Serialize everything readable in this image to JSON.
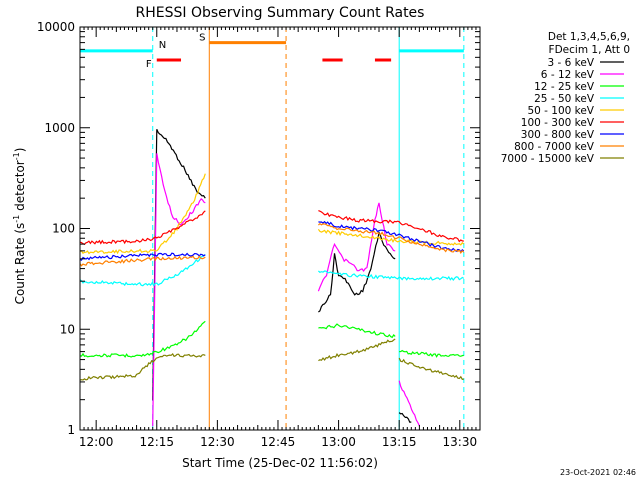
{
  "chart_data": {
    "type": "line",
    "title": "RHESSI Observing Summary Count Rates",
    "xlabel": "Start Time (25-Dec-02 11:56:02)",
    "ylabel_main": "Count Rate (s",
    "ylabel_sup1": "-1",
    "ylabel_mid": " detector",
    "ylabel_sup2": "-1",
    "ylabel_end": ")",
    "y_scale": "log",
    "ylim": [
      1,
      10000
    ],
    "xlim": [
      "11:56",
      "13:35"
    ],
    "x_ticks": [
      "12:00",
      "12:15",
      "12:30",
      "12:45",
      "13:00",
      "13:15",
      "13:30"
    ],
    "y_ticks": [
      "1",
      "10",
      "100",
      "1000",
      "10000"
    ],
    "legend_header": [
      "Det 1,3,4,5,6,9,",
      "FDecim 1, Att 0"
    ],
    "series": [
      {
        "name": "3 - 6 keV",
        "color": "#000000",
        "segments": [
          [
            [
              "12:14",
              2
            ],
            [
              "12:15",
              950
            ],
            [
              "12:18",
              700
            ],
            [
              "12:22",
              380
            ],
            [
              "12:25",
              230
            ],
            [
              "12:27",
              200
            ]
          ],
          [
            [
              "12:55",
              15
            ],
            [
              "12:58",
              22
            ],
            [
              "12:59",
              55
            ],
            [
              "13:00",
              35
            ],
            [
              "13:02",
              30
            ],
            [
              "13:04",
              22
            ],
            [
              "13:06",
              24
            ],
            [
              "13:08",
              40
            ],
            [
              "13:10",
              90
            ],
            [
              "13:12",
              60
            ],
            [
              "13:14",
              50
            ]
          ],
          [
            [
              "13:15",
              1.5
            ],
            [
              "13:18",
              1.2
            ]
          ]
        ]
      },
      {
        "name": "6 - 12 keV",
        "color": "#ff00ff",
        "segments": [
          [
            [
              "12:14",
              1.1
            ],
            [
              "12:15",
              550
            ],
            [
              "12:17",
              230
            ],
            [
              "12:19",
              130
            ],
            [
              "12:21",
              110
            ],
            [
              "12:24",
              150
            ],
            [
              "12:26",
              200
            ],
            [
              "12:27",
              180
            ]
          ],
          [
            [
              "12:55",
              24
            ],
            [
              "12:57",
              35
            ],
            [
              "12:59",
              70
            ],
            [
              "13:01",
              50
            ],
            [
              "13:03",
              45
            ],
            [
              "13:05",
              38
            ],
            [
              "13:07",
              40
            ],
            [
              "13:09",
              120
            ],
            [
              "13:10",
              180
            ],
            [
              "13:12",
              70
            ],
            [
              "13:14",
              60
            ]
          ],
          [
            [
              "13:15",
              3
            ],
            [
              "13:20",
              1.1
            ]
          ]
        ]
      },
      {
        "name": "12 - 25 keV",
        "color": "#00ff00",
        "segments": [
          [
            [
              "11:56",
              5.5
            ],
            [
              "12:12",
              5.5
            ],
            [
              "12:15",
              6
            ],
            [
              "12:20",
              7
            ],
            [
              "12:24",
              9
            ],
            [
              "12:27",
              12
            ]
          ],
          [
            [
              "12:55",
              10
            ],
            [
              "13:00",
              11
            ],
            [
              "13:05",
              10
            ],
            [
              "13:10",
              9
            ],
            [
              "13:14",
              8.5
            ]
          ],
          [
            [
              "13:15",
              6
            ],
            [
              "13:25",
              5.5
            ],
            [
              "13:31",
              5.5
            ]
          ]
        ]
      },
      {
        "name": "25 - 50 keV",
        "color": "#00ffff",
        "segments": [
          [
            [
              "11:56",
              30
            ],
            [
              "12:10",
              28
            ],
            [
              "12:15",
              28
            ],
            [
              "12:20",
              35
            ],
            [
              "12:24",
              45
            ],
            [
              "12:27",
              55
            ]
          ],
          [
            [
              "12:55",
              38
            ],
            [
              "13:00",
              35
            ],
            [
              "13:05",
              34
            ],
            [
              "13:10",
              33
            ],
            [
              "13:15",
              32
            ],
            [
              "13:31",
              32
            ]
          ]
        ]
      },
      {
        "name": "50 - 100 keV",
        "color": "#ffcc00",
        "segments": [
          [
            [
              "11:56",
              58
            ],
            [
              "12:12",
              60
            ],
            [
              "12:15",
              60
            ],
            [
              "12:20",
              100
            ],
            [
              "12:24",
              180
            ],
            [
              "12:27",
              350
            ]
          ],
          [
            [
              "12:55",
              95
            ],
            [
              "13:00",
              90
            ],
            [
              "13:05",
              85
            ],
            [
              "13:10",
              80
            ],
            [
              "13:15",
              75
            ],
            [
              "13:31",
              70
            ]
          ]
        ]
      },
      {
        "name": "100 - 300 keV",
        "color": "#ff0000",
        "segments": [
          [
            [
              "11:56",
              72
            ],
            [
              "12:10",
              75
            ],
            [
              "12:15",
              80
            ],
            [
              "12:20",
              100
            ],
            [
              "12:25",
              130
            ],
            [
              "12:27",
              150
            ]
          ],
          [
            [
              "12:55",
              145
            ],
            [
              "13:00",
              130
            ],
            [
              "13:05",
              120
            ],
            [
              "13:10",
              118
            ],
            [
              "13:15",
              115
            ],
            [
              "13:20",
              100
            ],
            [
              "13:25",
              85
            ],
            [
              "13:31",
              75
            ]
          ]
        ]
      },
      {
        "name": "300 - 800 keV",
        "color": "#0000ff",
        "segments": [
          [
            [
              "11:56",
              50
            ],
            [
              "12:15",
              55
            ],
            [
              "12:27",
              55
            ]
          ],
          [
            [
              "12:55",
              120
            ],
            [
              "13:00",
              105
            ],
            [
              "13:05",
              100
            ],
            [
              "13:10",
              95
            ],
            [
              "13:15",
              85
            ],
            [
              "13:20",
              75
            ],
            [
              "13:25",
              65
            ],
            [
              "13:31",
              60
            ]
          ]
        ]
      },
      {
        "name": "800 - 7000 keV",
        "color": "#ff8000",
        "segments": [
          [
            [
              "11:56",
              44
            ],
            [
              "12:15",
              50
            ],
            [
              "12:27",
              52
            ]
          ],
          [
            [
              "12:55",
              110
            ],
            [
              "13:00",
              100
            ],
            [
              "13:05",
              95
            ],
            [
              "13:10",
              90
            ],
            [
              "13:15",
              80
            ],
            [
              "13:20",
              70
            ],
            [
              "13:25",
              62
            ],
            [
              "13:31",
              58
            ]
          ]
        ]
      },
      {
        "name": "7000 - 15000 keV",
        "color": "#808000",
        "segments": [
          [
            [
              "11:56",
              3.2
            ],
            [
              "12:10",
              3.5
            ],
            [
              "12:13",
              4.5
            ],
            [
              "12:16",
              5.5
            ],
            [
              "12:27",
              5.5
            ]
          ],
          [
            [
              "12:55",
              5
            ],
            [
              "13:00",
              5.5
            ],
            [
              "13:05",
              6
            ],
            [
              "13:10",
              7
            ],
            [
              "13:14",
              8
            ]
          ],
          [
            [
              "13:15",
              5
            ],
            [
              "13:22",
              4
            ],
            [
              "13:31",
              3.2
            ]
          ]
        ]
      }
    ],
    "flag_bars": [
      {
        "label": "N",
        "color": "#00ffff",
        "y": 5800,
        "segments": [
          [
            "11:56",
            "12:14"
          ],
          [
            "13:15",
            "13:31"
          ]
        ]
      },
      {
        "label": "S",
        "color": "#ff8000",
        "y": 7000,
        "segments": [
          [
            "12:28",
            "12:47"
          ]
        ]
      },
      {
        "label": "F",
        "color": "#ff0000",
        "y": 4700,
        "segments": [
          [
            "12:15",
            "12:21"
          ],
          [
            "12:56",
            "13:01"
          ],
          [
            "13:09",
            "13:13"
          ]
        ]
      }
    ],
    "vertical_markers": [
      {
        "time": "11:56",
        "color": "#00ffff",
        "style": "solid"
      },
      {
        "time": "12:14",
        "color": "#00ffff",
        "style": "dashed"
      },
      {
        "time": "12:28",
        "color": "#ff8000",
        "style": "solid"
      },
      {
        "time": "12:47",
        "color": "#ff8000",
        "style": "dashed"
      },
      {
        "time": "13:15",
        "color": "#00ffff",
        "style": "solid"
      },
      {
        "time": "13:31",
        "color": "#00ffff",
        "style": "dashed"
      }
    ],
    "grid": false,
    "legend_position": "outside-right"
  },
  "footer_stamp": "23-Oct-2021 02:46"
}
